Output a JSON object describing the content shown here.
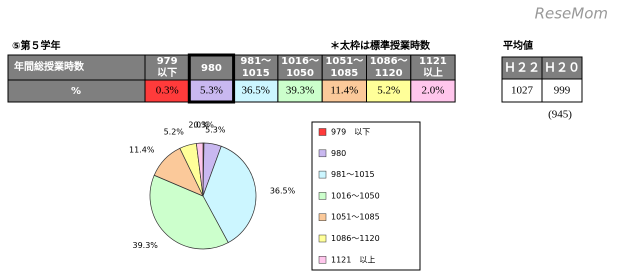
{
  "watermark": "ReseMom",
  "header": {
    "title": "⑤第５学年",
    "note": "＊太枠は標準授業時数",
    "avg_title": "平均値"
  },
  "table": {
    "row_header": "年間総授業時数",
    "row_label": "%",
    "col_headers": [
      [
        "979",
        "以下"
      ],
      [
        "980"
      ],
      [
        "981～",
        "1015"
      ],
      [
        "1016～",
        "1050"
      ],
      [
        "1051～",
        "1085"
      ],
      [
        "1086～",
        "1120"
      ],
      [
        "1121",
        "以上"
      ]
    ]
  },
  "avg_table": {
    "headers": [
      "Ｈ２２",
      "Ｈ２０"
    ],
    "values": [
      "1027",
      "999"
    ],
    "note": "(945)"
  },
  "chart_data": {
    "type": "pie",
    "categories": [
      "979　以下",
      "980",
      "981～1015",
      "1016～1050",
      "1051～1085",
      "1086～1120",
      "1121　以上"
    ],
    "values": [
      0.3,
      5.3,
      36.5,
      39.3,
      11.4,
      5.2,
      2.0
    ],
    "value_labels": [
      "0.3%",
      "5.3%",
      "36.5%",
      "39.3%",
      "11.4%",
      "5.2%",
      "2.0%"
    ],
    "colors": [
      "#ff3b3b",
      "#c9b8f0",
      "#ccf6ff",
      "#ccffcc",
      "#fbc99a",
      "#ffff99",
      "#ffc6ec"
    ]
  }
}
